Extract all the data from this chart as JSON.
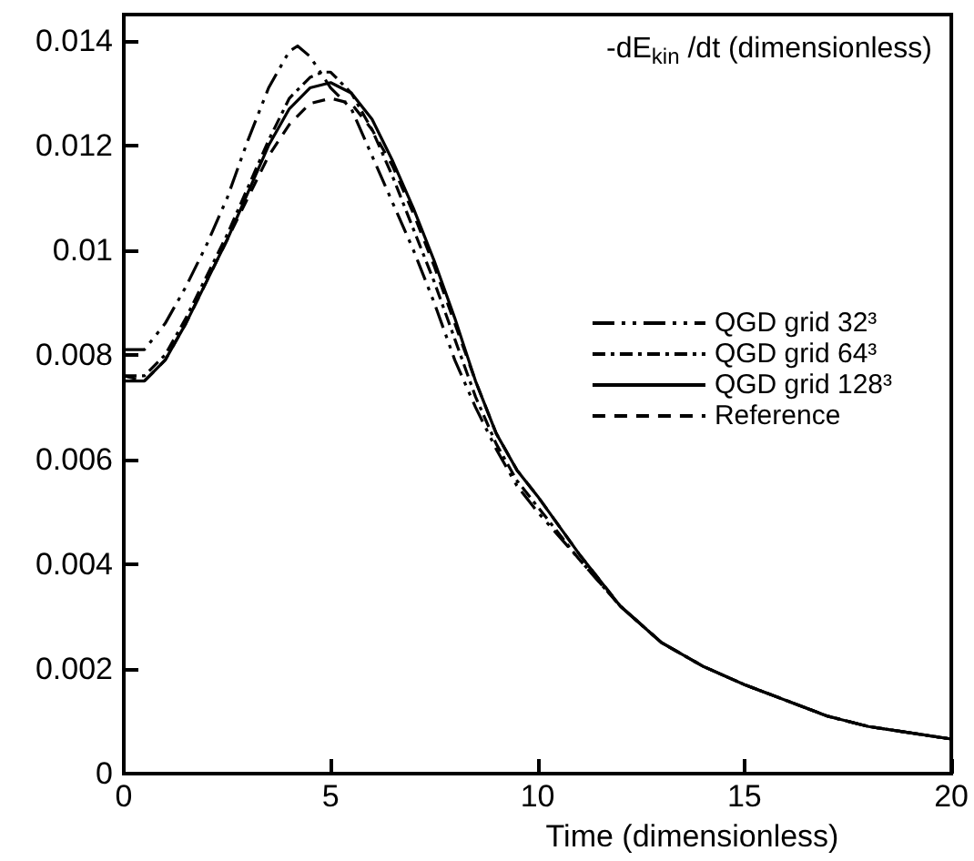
{
  "chart_data": {
    "type": "line",
    "ylabel": "-dE$_{kin}$ /dt (dimensionless)",
    "xlabel": "Time (dimensionless)",
    "x": [
      0,
      0.5,
      1,
      1.5,
      2,
      2.5,
      3,
      3.5,
      4,
      4.5,
      5,
      5.5,
      6,
      6.5,
      7,
      7.5,
      8,
      8.5,
      9,
      9.5,
      10,
      11,
      12,
      13,
      14,
      15,
      16,
      17,
      18,
      19,
      20
    ],
    "series": [
      {
        "name": "QGD grid 32³",
        "color": "#000000",
        "line_style": "dashdotdot",
        "x": [
          0,
          0.5,
          1,
          1.5,
          2,
          2.5,
          3,
          3.5,
          4,
          4.2,
          4.5,
          5,
          5.5,
          6,
          6.5,
          7,
          7.5,
          8,
          8.5,
          9,
          9.5,
          10,
          11,
          12,
          13,
          14,
          15,
          16,
          17,
          18,
          19,
          20
        ],
        "values": [
          0.0081,
          0.0081,
          0.0086,
          0.0093,
          0.0101,
          0.011,
          0.0121,
          0.0131,
          0.0138,
          0.0139,
          0.0137,
          0.0131,
          0.0127,
          0.0118,
          0.0109,
          0.01,
          0.009,
          0.0079,
          0.007,
          0.0062,
          0.0055,
          0.005,
          0.0041,
          0.0032,
          0.0025,
          0.00205,
          0.0017,
          0.0014,
          0.0011,
          0.0009,
          0.00078,
          0.00066
        ]
      },
      {
        "name": "QGD grid 64³",
        "color": "#000000",
        "line_style": "dashdot",
        "x": [
          0,
          0.5,
          1,
          1.5,
          2,
          2.5,
          3,
          3.5,
          4,
          4.5,
          4.8,
          5,
          5.5,
          6,
          6.5,
          7,
          7.5,
          8,
          8.5,
          9,
          9.5,
          10,
          11,
          12,
          13,
          14,
          15,
          16,
          17,
          18,
          19,
          20
        ],
        "values": [
          0.0076,
          0.0076,
          0.008,
          0.0087,
          0.0095,
          0.0103,
          0.0112,
          0.0121,
          0.0129,
          0.0133,
          0.0134,
          0.0134,
          0.013,
          0.0123,
          0.0114,
          0.0104,
          0.0094,
          0.0083,
          0.0072,
          0.0063,
          0.0056,
          0.0051,
          0.0041,
          0.0032,
          0.0025,
          0.00205,
          0.0017,
          0.0014,
          0.0011,
          0.0009,
          0.00078,
          0.00066
        ]
      },
      {
        "name": "QGD grid 128³",
        "color": "#000000",
        "line_style": "solid",
        "values": [
          0.0075,
          0.0075,
          0.0079,
          0.0086,
          0.0094,
          0.0102,
          0.0111,
          0.012,
          0.0127,
          0.0131,
          0.0132,
          0.013,
          0.0125,
          0.0117,
          0.0108,
          0.0098,
          0.0087,
          0.0075,
          0.0065,
          0.0058,
          0.0053,
          0.0042,
          0.0032,
          0.0025,
          0.00205,
          0.0017,
          0.0014,
          0.0011,
          0.0009,
          0.00078,
          0.00066
        ]
      },
      {
        "name": "Reference",
        "color": "#000000",
        "line_style": "dashed",
        "values": [
          0.0076,
          0.0075,
          0.0079,
          0.0086,
          0.0094,
          0.0102,
          0.011,
          0.0118,
          0.0124,
          0.0128,
          0.0129,
          0.0128,
          0.0123,
          0.0116,
          0.0107,
          0.0097,
          0.0086,
          0.0075,
          0.0065,
          0.0058,
          0.0053,
          0.0042,
          0.0032,
          0.0025,
          0.00205,
          0.0017,
          0.0014,
          0.0011,
          0.0009,
          0.00078,
          0.00066
        ]
      }
    ],
    "xlim": [
      0,
      20
    ],
    "xticks": [
      0,
      5,
      10,
      15,
      20
    ],
    "ylim": [
      0,
      0.0145
    ],
    "yticks": [
      0,
      0.002,
      0.004,
      0.006,
      0.008,
      0.01,
      0.012,
      0.014
    ],
    "grid": false,
    "legend": "right",
    "marker": "none"
  }
}
